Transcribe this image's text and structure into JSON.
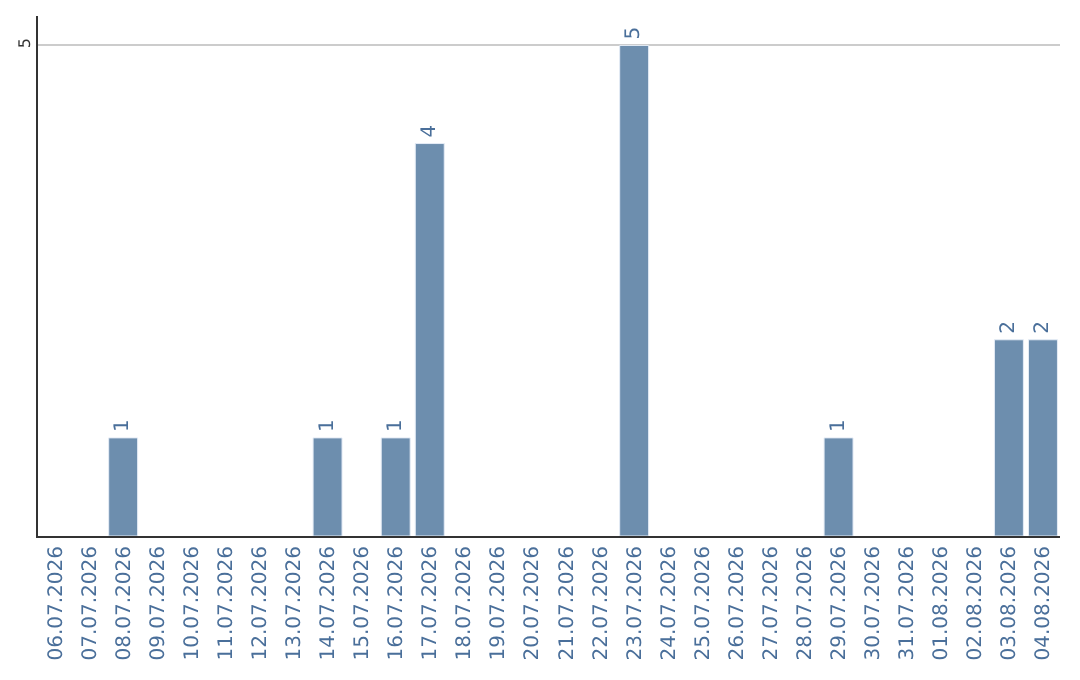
{
  "chart_data": {
    "type": "bar",
    "categories": [
      "06.07.2026",
      "07.07.2026",
      "08.07.2026",
      "09.07.2026",
      "10.07.2026",
      "11.07.2026",
      "12.07.2026",
      "13.07.2026",
      "14.07.2026",
      "15.07.2026",
      "16.07.2026",
      "17.07.2026",
      "18.07.2026",
      "19.07.2026",
      "20.07.2026",
      "21.07.2026",
      "22.07.2026",
      "23.07.2026",
      "24.07.2026",
      "25.07.2026",
      "26.07.2026",
      "27.07.2026",
      "28.07.2026",
      "29.07.2026",
      "30.07.2026",
      "31.07.2026",
      "01.08.2026",
      "02.08.2026",
      "03.08.2026",
      "04.08.2026"
    ],
    "values": [
      null,
      null,
      1,
      null,
      null,
      null,
      null,
      null,
      1,
      null,
      1,
      4,
      null,
      null,
      null,
      null,
      null,
      5,
      null,
      null,
      null,
      null,
      null,
      1,
      null,
      null,
      null,
      null,
      2,
      2
    ],
    "value_labels": [
      null,
      null,
      "1",
      null,
      null,
      null,
      null,
      null,
      "1",
      null,
      "1",
      "4",
      null,
      null,
      null,
      null,
      null,
      "5",
      null,
      null,
      null,
      null,
      null,
      "1",
      null,
      null,
      null,
      null,
      "2",
      "2"
    ],
    "color": "#6d8eae",
    "ylim": [
      0,
      5.3
    ],
    "yticks": [
      5
    ],
    "grid": "y"
  }
}
